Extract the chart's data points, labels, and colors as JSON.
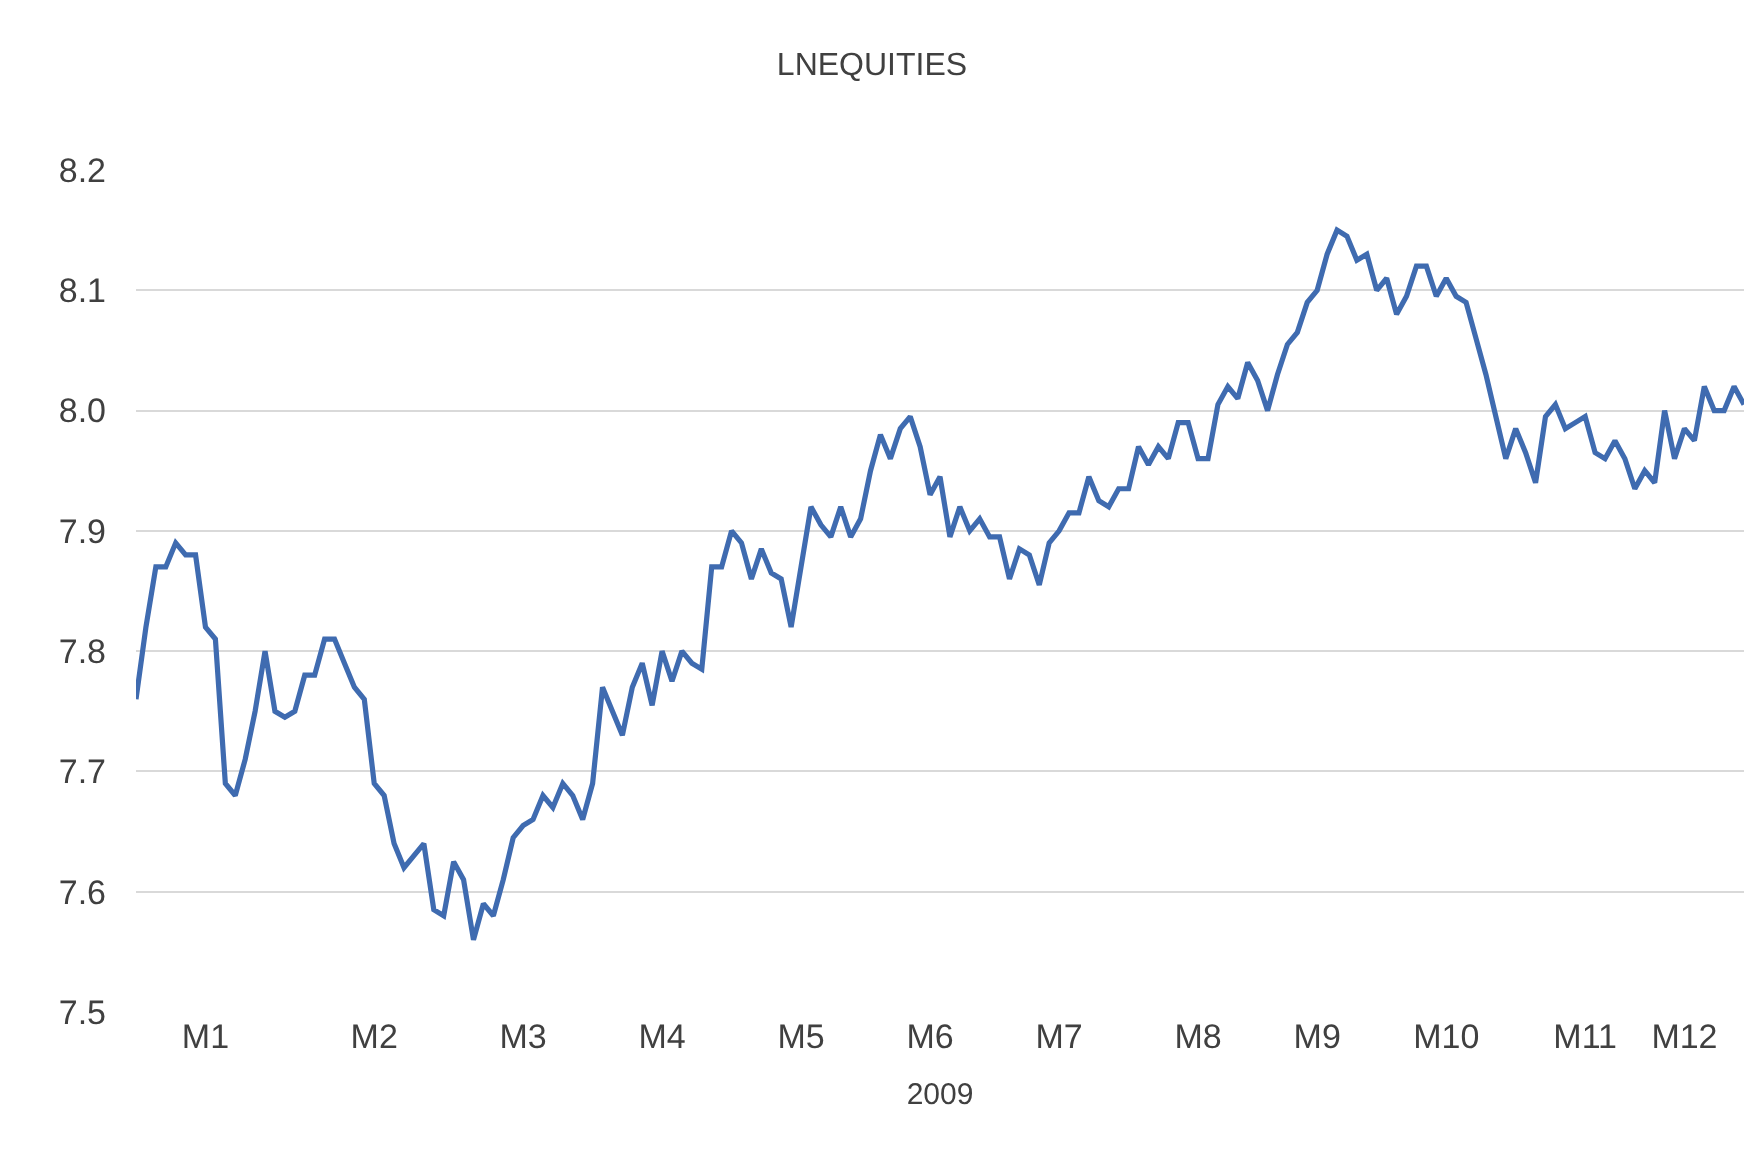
{
  "chart_data": {
    "type": "line",
    "title": "LNEQUITIES",
    "xlabel": "2009",
    "categories": [
      null,
      null,
      null,
      null,
      null,
      null,
      null,
      "M1",
      null,
      null,
      null,
      null,
      null,
      null,
      null,
      null,
      null,
      null,
      null,
      null,
      null,
      null,
      null,
      null,
      "M2",
      null,
      null,
      null,
      null,
      null,
      null,
      null,
      null,
      null,
      null,
      null,
      null,
      null,
      null,
      "M3",
      null,
      null,
      null,
      null,
      null,
      null,
      null,
      null,
      null,
      null,
      null,
      null,
      null,
      "M4",
      null,
      null,
      null,
      null,
      null,
      null,
      null,
      null,
      null,
      null,
      null,
      null,
      null,
      "M5",
      null,
      null,
      null,
      null,
      null,
      null,
      null,
      null,
      null,
      null,
      null,
      null,
      "M6",
      null,
      null,
      null,
      null,
      null,
      null,
      null,
      null,
      null,
      null,
      null,
      null,
      "M7",
      null,
      null,
      null,
      null,
      null,
      null,
      null,
      null,
      null,
      null,
      null,
      null,
      null,
      "M8",
      null,
      null,
      null,
      null,
      null,
      null,
      null,
      null,
      null,
      null,
      null,
      "M9",
      null,
      null,
      null,
      null,
      null,
      null,
      null,
      null,
      null,
      null,
      null,
      null,
      "M10",
      null,
      null,
      null,
      null,
      null,
      null,
      null,
      null,
      null,
      null,
      null,
      null,
      null,
      "M11",
      null,
      null,
      null,
      null,
      null,
      null,
      null,
      null,
      null,
      "M12",
      null,
      null,
      null,
      null,
      null,
      null
    ],
    "series": [
      {
        "color": "#3f6bb0",
        "values": [
          7.76,
          7.82,
          7.87,
          7.87,
          7.89,
          7.88,
          7.88,
          7.82,
          7.81,
          7.69,
          7.68,
          7.71,
          7.75,
          7.8,
          7.75,
          7.745,
          7.75,
          7.78,
          7.78,
          7.81,
          7.81,
          7.79,
          7.77,
          7.76,
          7.69,
          7.68,
          7.64,
          7.62,
          7.63,
          7.64,
          7.585,
          7.58,
          7.625,
          7.61,
          7.56,
          7.59,
          7.58,
          7.61,
          7.645,
          7.655,
          7.66,
          7.68,
          7.67,
          7.69,
          7.68,
          7.66,
          7.69,
          7.77,
          7.75,
          7.73,
          7.77,
          7.79,
          7.755,
          7.8,
          7.775,
          7.8,
          7.79,
          7.785,
          7.87,
          7.87,
          7.9,
          7.89,
          7.86,
          7.885,
          7.865,
          7.86,
          7.82,
          7.87,
          7.92,
          7.905,
          7.895,
          7.92,
          7.895,
          7.91,
          7.95,
          7.98,
          7.96,
          7.985,
          7.995,
          7.97,
          7.93,
          7.945,
          7.895,
          7.92,
          7.9,
          7.91,
          7.895,
          7.895,
          7.86,
          7.885,
          7.88,
          7.855,
          7.89,
          7.9,
          7.915,
          7.915,
          7.945,
          7.925,
          7.92,
          7.935,
          7.935,
          7.97,
          7.955,
          7.97,
          7.96,
          7.99,
          7.99,
          7.96,
          7.96,
          8.005,
          8.02,
          8.01,
          8.04,
          8.025,
          8.0,
          8.03,
          8.055,
          8.065,
          8.09,
          8.1,
          8.13,
          8.15,
          8.145,
          8.125,
          8.13,
          8.1,
          8.11,
          8.08,
          8.095,
          8.12,
          8.12,
          8.095,
          8.11,
          8.095,
          8.09,
          8.06,
          8.03,
          7.995,
          7.96,
          7.985,
          7.965,
          7.94,
          7.995,
          8.005,
          7.985,
          7.99,
          7.995,
          7.965,
          7.96,
          7.975,
          7.96,
          7.935,
          7.95,
          7.94,
          8.0,
          7.96,
          7.985,
          7.975,
          8.02,
          8.0,
          8.0,
          8.02,
          8.005
        ]
      }
    ],
    "ylim": [
      7.5,
      8.2
    ],
    "yticks": [
      {
        "value": 7.5,
        "label": "7.5"
      },
      {
        "value": 7.6,
        "label": "7.6"
      },
      {
        "value": 7.7,
        "label": "7.7"
      },
      {
        "value": 7.8,
        "label": "7.8"
      },
      {
        "value": 7.9,
        "label": "7.9"
      },
      {
        "value": 8.0,
        "label": "8.0"
      },
      {
        "value": 8.1,
        "label": "8.1"
      },
      {
        "value": 8.2,
        "label": "8.2"
      }
    ],
    "grid": "y",
    "marker": "none",
    "line_style": "solid"
  }
}
